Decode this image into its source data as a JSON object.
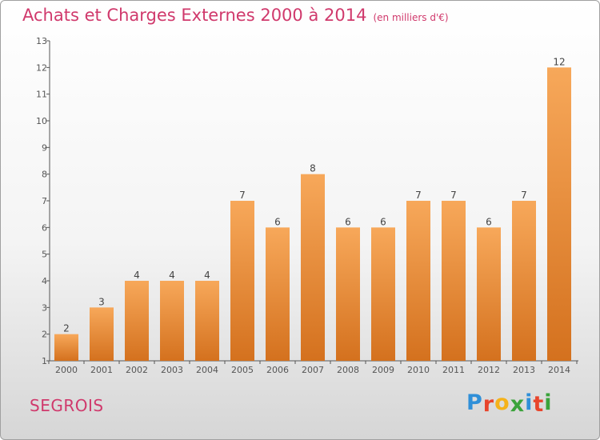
{
  "header": {
    "title": "Achats et Charges Externes 2000 à 2014",
    "unit": "(en milliers d'€)"
  },
  "footer": {
    "commune": "SEGROIS",
    "logo_letters": [
      "P",
      "r",
      "o",
      "x",
      "i",
      "t",
      "i"
    ]
  },
  "colors": {
    "bar_top": "#f7a85a",
    "bar_bottom": "#d4711e",
    "title": "#d0396c",
    "logo": [
      "#2f8fd8",
      "#e8452c",
      "#f5b21a",
      "#3aa33a",
      "#2f8fd8",
      "#e8452c",
      "#3aa33a"
    ]
  },
  "chart_data": {
    "type": "bar",
    "title": "Achats et Charges Externes 2000 à 2014",
    "subtitle": "(en milliers d'€)",
    "categories": [
      "2000",
      "2001",
      "2002",
      "2003",
      "2004",
      "2005",
      "2006",
      "2007",
      "2008",
      "2009",
      "2010",
      "2011",
      "2012",
      "2013",
      "2014"
    ],
    "values": [
      2,
      3,
      4,
      4,
      4,
      7,
      6,
      8,
      6,
      6,
      7,
      7,
      6,
      7,
      12
    ],
    "ylim": [
      1,
      13
    ],
    "yticks": [
      "1",
      "2",
      "3",
      "4",
      "5",
      "6",
      "7",
      "8",
      "9",
      "10",
      "11",
      "12",
      "13"
    ],
    "grid": false,
    "legend": "none"
  }
}
